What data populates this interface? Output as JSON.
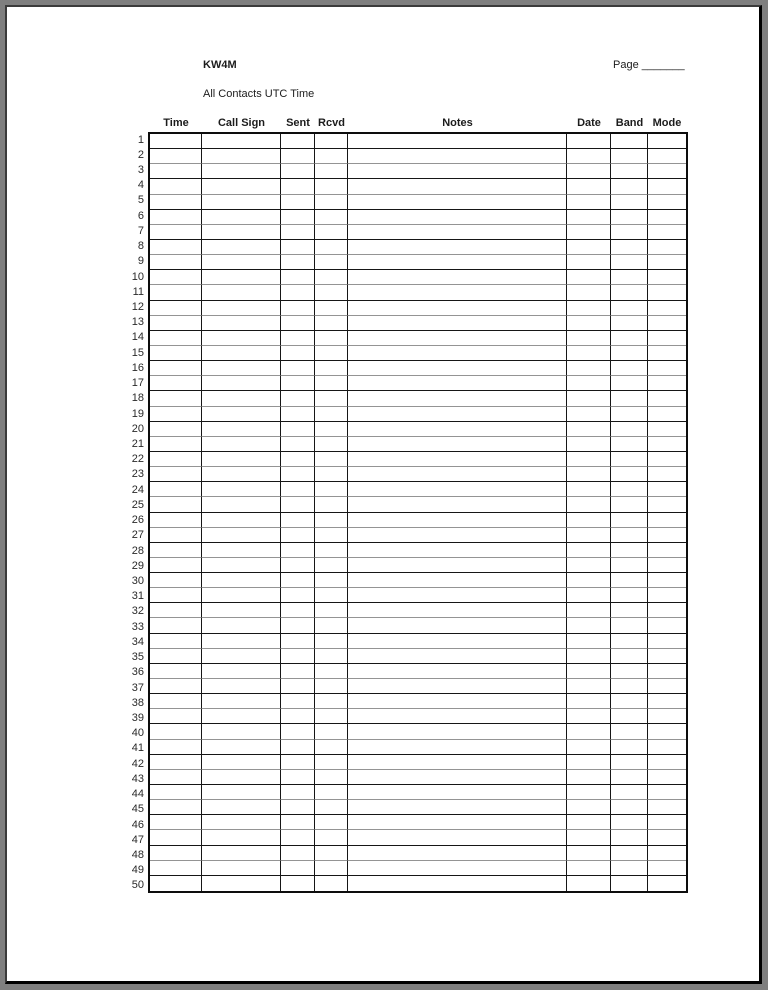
{
  "document": {
    "callsign": "KW4M",
    "subtitle": "All Contacts UTC Time",
    "page_field_label": "Page _______"
  },
  "table": {
    "column_headers": [
      "Time",
      "Call Sign",
      "Sent",
      "Rcvd",
      "Notes",
      "Date",
      "Band",
      "Mode"
    ],
    "row_count": 50,
    "row_numbers": [
      1,
      2,
      3,
      4,
      5,
      6,
      7,
      8,
      9,
      10,
      11,
      12,
      13,
      14,
      15,
      16,
      17,
      18,
      19,
      20,
      21,
      22,
      23,
      24,
      25,
      26,
      27,
      28,
      29,
      30,
      31,
      32,
      33,
      34,
      35,
      36,
      37,
      38,
      39,
      40,
      41,
      42,
      43,
      44,
      45,
      46,
      47,
      48,
      49,
      50
    ]
  },
  "colors": {
    "canvas_background": "#7f7f7f",
    "page_background": "#ffffff",
    "page_edge_shadow": "#000000",
    "grid_line_dark": "#161616",
    "grid_line_light": "#949494",
    "text": "#1c1c1c"
  }
}
